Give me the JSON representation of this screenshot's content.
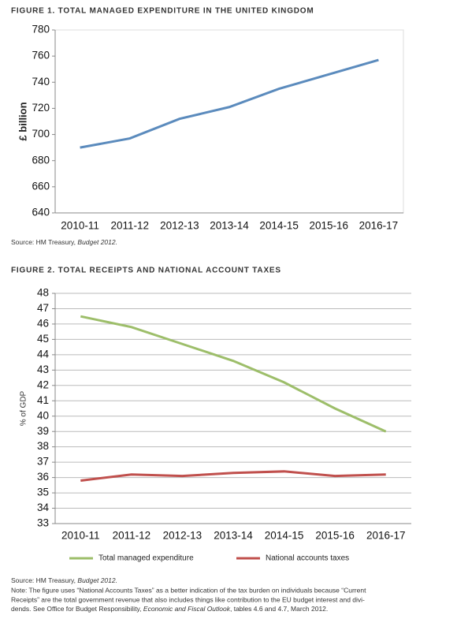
{
  "chart_data": [
    {
      "type": "line",
      "title": "FIGURE 1. TOTAL MANAGED EXPENDITURE IN THE UNITED KINGDOM",
      "y_label": "£ billion",
      "categories": [
        "2010-11",
        "2011-12",
        "2012-13",
        "2013-14",
        "2014-15",
        "2015-16",
        "2016-17"
      ],
      "series": [
        {
          "name": null,
          "color": "#5b8bbd",
          "values": [
            690,
            697,
            712,
            721,
            735,
            746,
            757
          ]
        }
      ],
      "ylim": [
        640,
        780
      ],
      "yticks": [
        640,
        660,
        680,
        700,
        720,
        740,
        760,
        780
      ],
      "grid": false,
      "source": {
        "text": "Source: HM Treasury, ",
        "italic": "Budget 2012."
      }
    },
    {
      "type": "line",
      "title": "FIGURE 2. TOTAL RECEIPTS AND NATIONAL ACCOUNT TAXES",
      "y_label": "% of GDP",
      "categories": [
        "2010-11",
        "2011-12",
        "2012-13",
        "2013-14",
        "2014-15",
        "2015-16",
        "2016-17"
      ],
      "series": [
        {
          "name": "Total managed expenditure",
          "color": "#9dbe6a",
          "values": [
            46.5,
            45.8,
            44.7,
            43.6,
            42.2,
            40.5,
            39.0
          ]
        },
        {
          "name": "National accounts taxes",
          "color": "#c0504d",
          "values": [
            35.8,
            36.2,
            36.1,
            36.3,
            36.4,
            36.1,
            36.2
          ]
        }
      ],
      "ylim": [
        33,
        48
      ],
      "yticks": [
        33,
        34,
        35,
        36,
        37,
        38,
        39,
        40,
        41,
        42,
        43,
        44,
        45,
        46,
        47,
        48
      ],
      "grid": true,
      "legend": "bottom",
      "source": {
        "text": "Source: HM Treasury, ",
        "italic": "Budget 2012."
      },
      "note": [
        "Note: The figure uses “National Accounts Taxes” as a better indication of the tax burden on individuals because “Current",
        "Receipts” are the total government revenue that also includes things like contribution to the EU budget interest and divi-",
        {
          "text": "dends. See Office for Budget Responsibility, ",
          "italic": "Economic and Fiscal Outlook",
          "rest": ", tables 4.6 and 4.7, March 2012."
        }
      ]
    }
  ]
}
